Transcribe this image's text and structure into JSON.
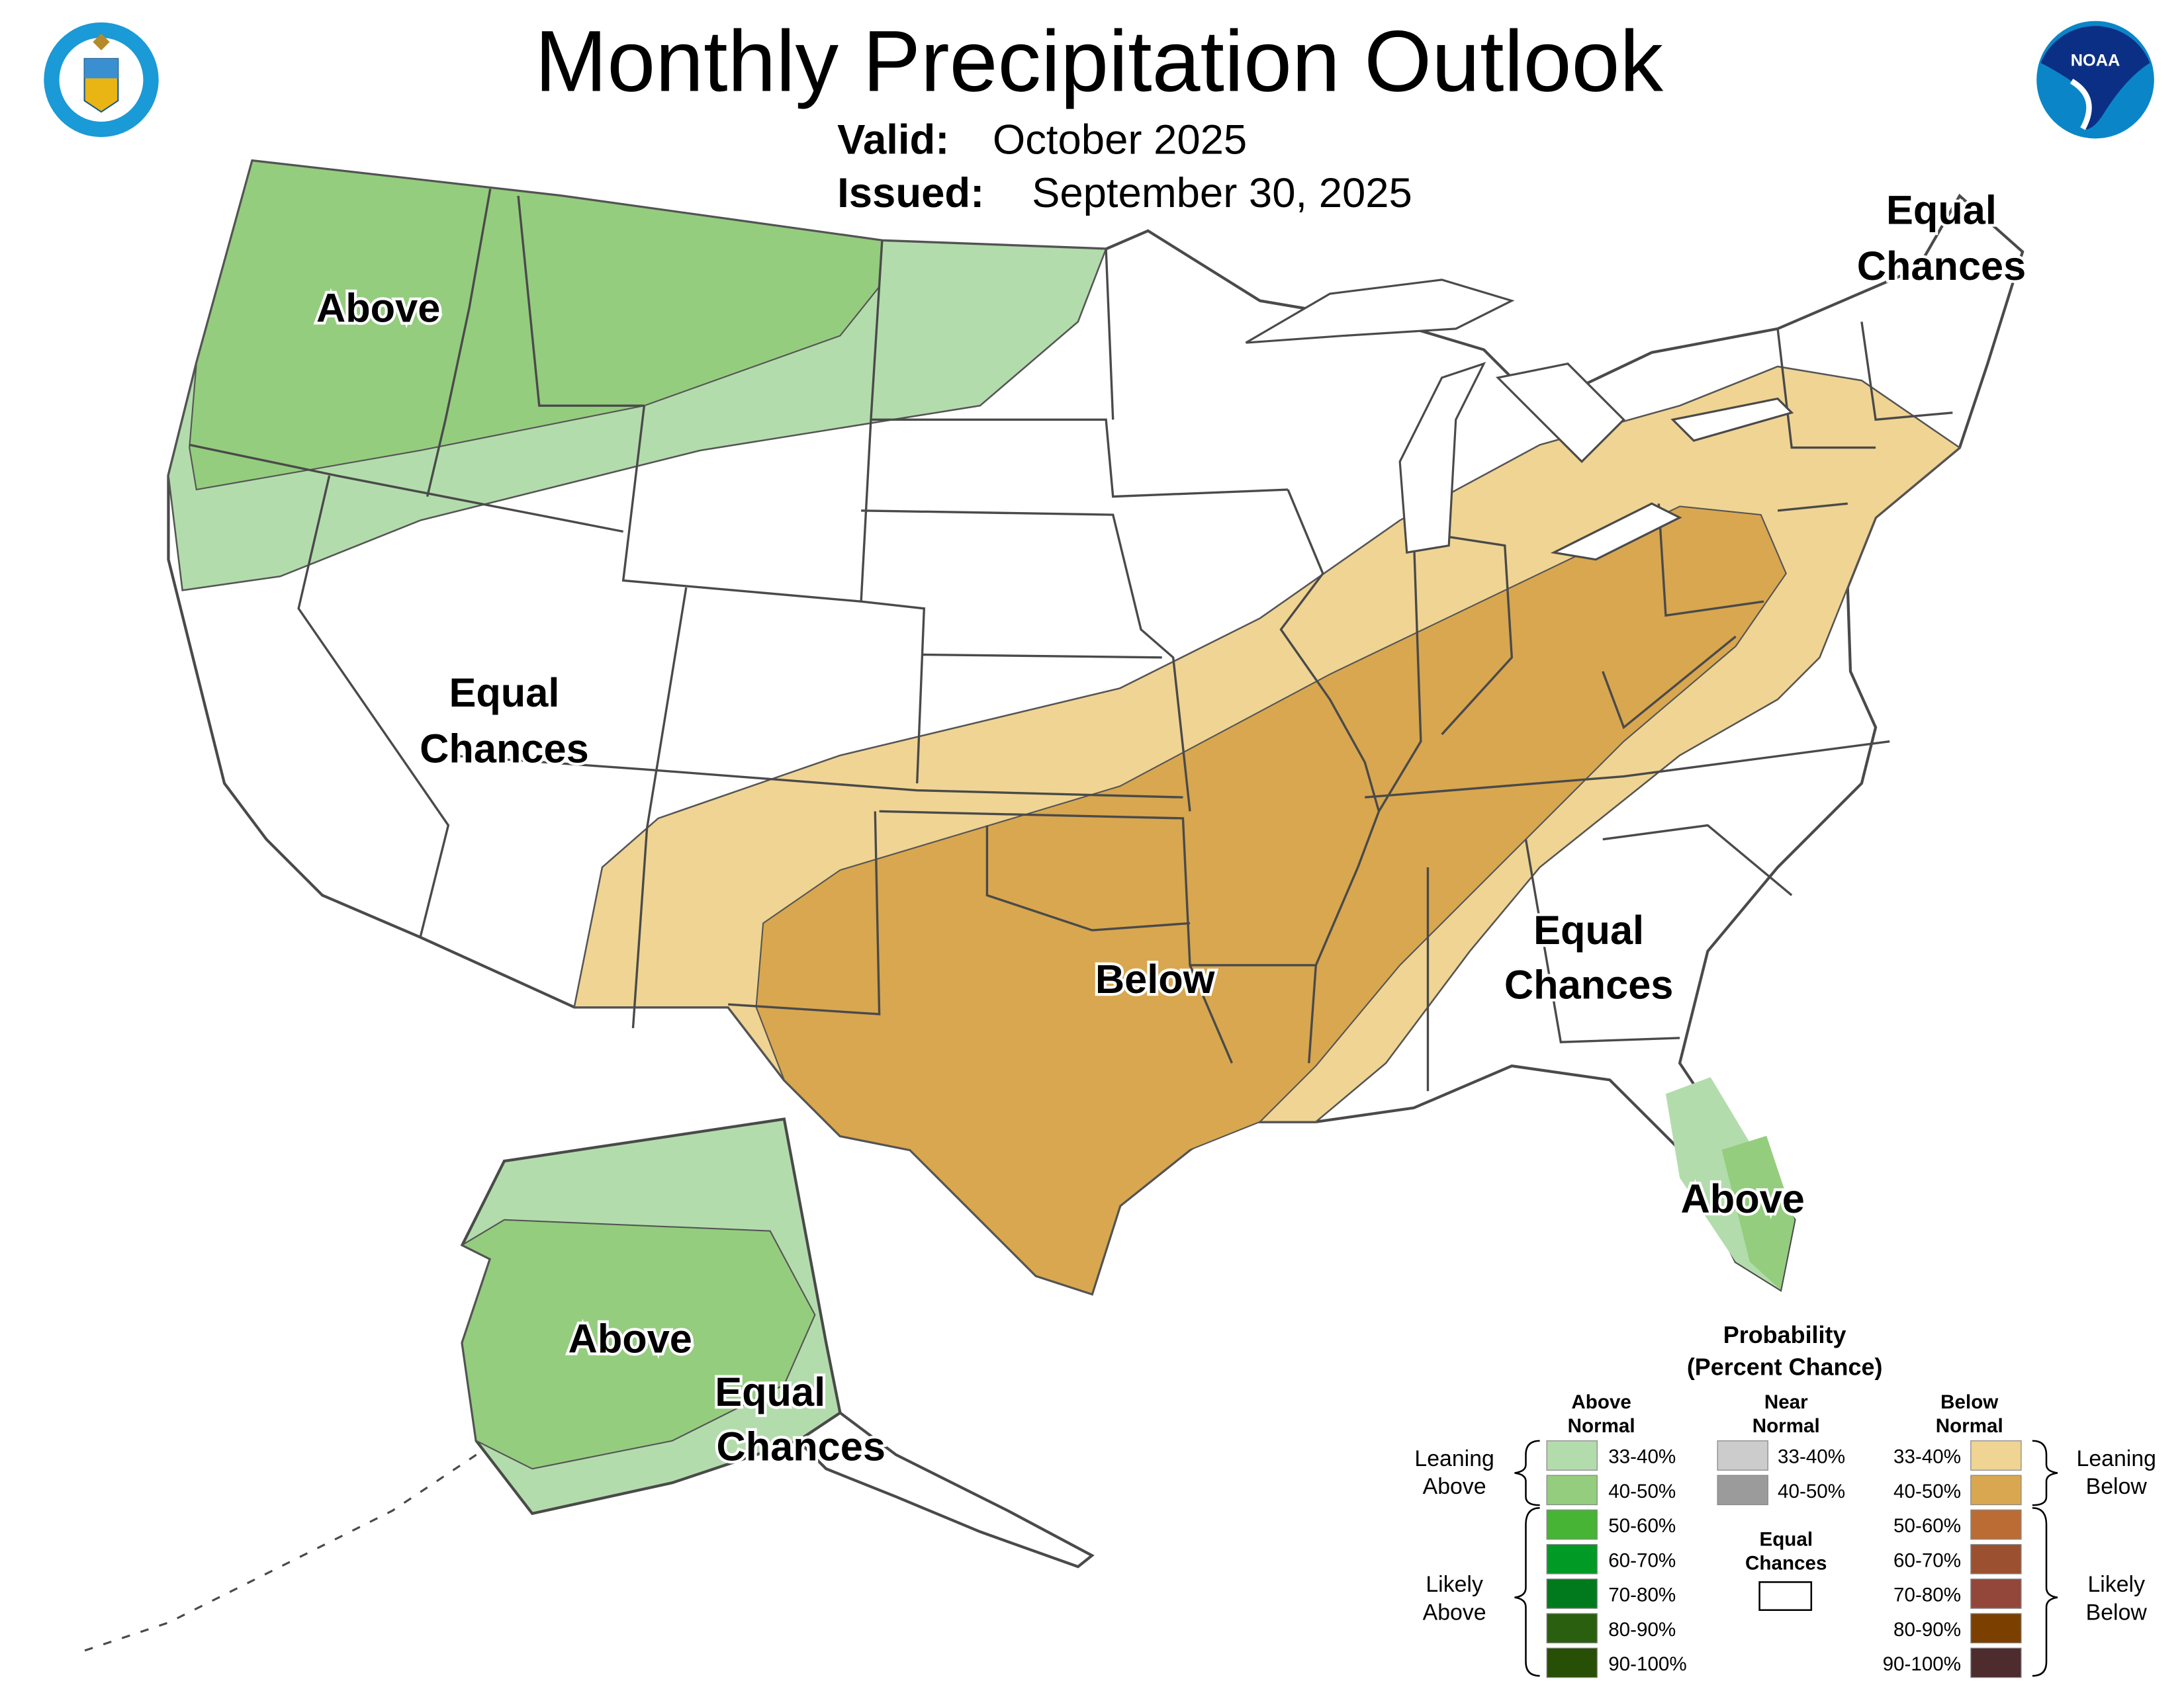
{
  "header": {
    "title": "Monthly Precipitation Outlook",
    "valid_label": "Valid:",
    "valid_value": "October 2025",
    "issued_label": "Issued:",
    "issued_value": "September 30, 2025",
    "left_logo": "Department of Commerce seal - DEPARTMENT OF COMMERCE UNITED STATES OF AMERICA",
    "right_logo": "NOAA"
  },
  "map": {
    "labels": {
      "nw_above": "Above",
      "ne_equal_1": "Equal",
      "ne_equal_2": "Chances",
      "w_equal_1": "Equal",
      "w_equal_2": "Chances",
      "s_below": "Below",
      "se_equal_1": "Equal",
      "se_equal_2": "Chances",
      "fl_above": "Above",
      "ak_above": "Above",
      "ak_equal_1": "Equal",
      "ak_equal_2": "Chances"
    },
    "colors": {
      "above_33_40": "#b3dcac",
      "above_40_50": "#94cd7e",
      "below_33_40": "#f0d493",
      "below_40_50": "#d8a74f",
      "outline": "#4a4a4a"
    }
  },
  "legend": {
    "title_1": "Probability",
    "title_2": "(Percent Chance)",
    "above_header_1": "Above",
    "above_header_2": "Normal",
    "near_header_1": "Near",
    "near_header_2": "Normal",
    "below_header_1": "Below",
    "below_header_2": "Normal",
    "leaning_above_1": "Leaning",
    "leaning_above_2": "Above",
    "likely_above_1": "Likely",
    "likely_above_2": "Above",
    "leaning_below_1": "Leaning",
    "leaning_below_2": "Below",
    "likely_below_1": "Likely",
    "likely_below_2": "Below",
    "equal_1": "Equal",
    "equal_2": "Chances",
    "above": [
      {
        "range": "33-40%",
        "color": "#b3dcac"
      },
      {
        "range": "40-50%",
        "color": "#94cd7e"
      },
      {
        "range": "50-60%",
        "color": "#48b435"
      },
      {
        "range": "60-70%",
        "color": "#009a25"
      },
      {
        "range": "70-80%",
        "color": "#007a1d"
      },
      {
        "range": "80-90%",
        "color": "#2a5f10"
      },
      {
        "range": "90-100%",
        "color": "#274f05"
      }
    ],
    "near": [
      {
        "range": "33-40%",
        "color": "#cccccc"
      },
      {
        "range": "40-50%",
        "color": "#9b9b9b"
      }
    ],
    "below": [
      {
        "range": "33-40%",
        "color": "#f0d493"
      },
      {
        "range": "40-50%",
        "color": "#d8a74f"
      },
      {
        "range": "50-60%",
        "color": "#bb6c35"
      },
      {
        "range": "60-70%",
        "color": "#9b5030"
      },
      {
        "range": "70-80%",
        "color": "#93463a"
      },
      {
        "range": "80-90%",
        "color": "#7b3f00"
      },
      {
        "range": "90-100%",
        "color": "#4e2b2d"
      }
    ],
    "equal_color": "#ffffff"
  }
}
